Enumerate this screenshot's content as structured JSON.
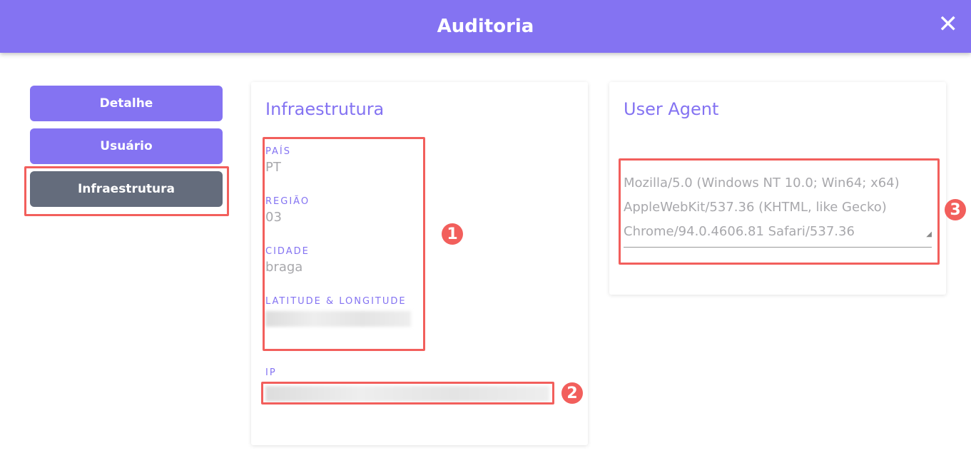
{
  "header": {
    "title": "Auditoria",
    "close_icon": "close-icon"
  },
  "sidebar": {
    "items": [
      {
        "label": "Detalhe"
      },
      {
        "label": "Usuário"
      },
      {
        "label": "Infraestrutura",
        "active": true
      }
    ]
  },
  "infra": {
    "title": "Infraestrutura",
    "fields": [
      {
        "label": "PAÍS",
        "value": "PT"
      },
      {
        "label": "REGIÃO",
        "value": "03"
      },
      {
        "label": "CIDADE",
        "value": "braga"
      },
      {
        "label": "LATITUDE & LONGITUDE"
      }
    ],
    "ip_label": "IP"
  },
  "user_agent": {
    "title": "User Agent",
    "lines": [
      "Mozilla/5.0 (Windows NT 10.0; Win64; x64)",
      "AppleWebKit/537.36 (KHTML, like Gecko)",
      "Chrome/94.0.4606.81 Safari/537.36"
    ]
  },
  "annotations": [
    "1",
    "2",
    "3"
  ],
  "colors": {
    "accent": "#8473f2",
    "active": "#646c7c",
    "highlight": "#f25f5c"
  }
}
